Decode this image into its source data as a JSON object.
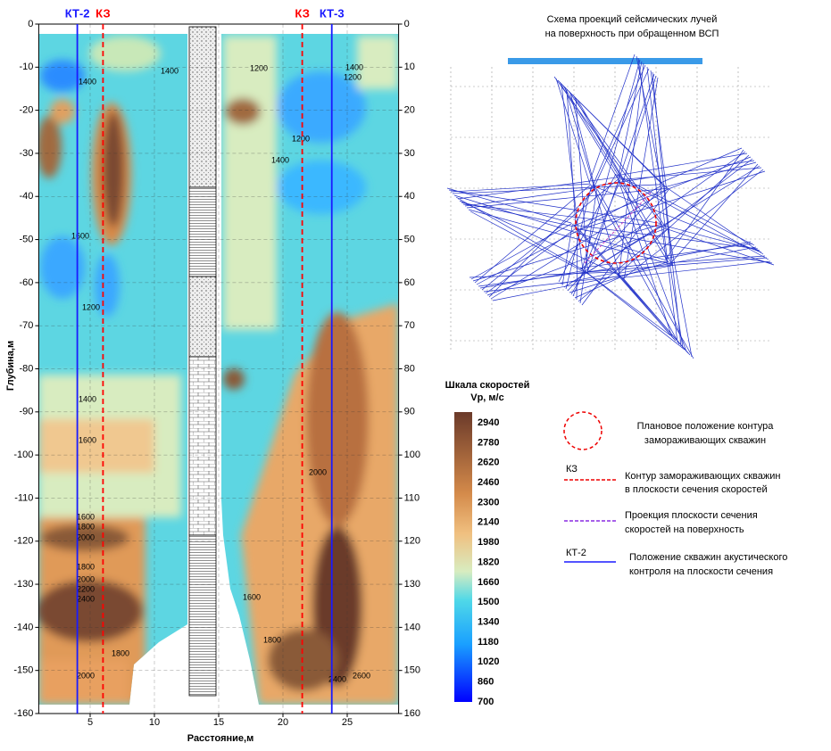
{
  "chart_data": {
    "type": "contour",
    "xlabel": "Расстояние,м",
    "ylabel": "Глубина,м",
    "xlim": [
      1,
      29
    ],
    "xticks": [
      5,
      10,
      15,
      20,
      25
    ],
    "ylim": [
      -160,
      0
    ],
    "yticks": [
      0,
      -10,
      -20,
      -30,
      -40,
      -50,
      -60,
      -70,
      -80,
      -90,
      -100,
      -110,
      -120,
      -130,
      -140,
      -150,
      -160
    ],
    "y2lim": [
      160,
      0
    ],
    "y2ticks": [
      0,
      10,
      20,
      30,
      40,
      50,
      60,
      70,
      80,
      90,
      100,
      110,
      120,
      130,
      140,
      150,
      160
    ],
    "grid": true,
    "annotations": [
      {
        "label": "КТ-2",
        "x": 4,
        "color": "#1a1aff"
      },
      {
        "label": "КЗ",
        "x": 6,
        "color": "#ff0000"
      },
      {
        "label": "КЗ",
        "x": 21.5,
        "color": "#ff0000"
      },
      {
        "label": "КТ-3",
        "x": 23.8,
        "color": "#1a1aff"
      }
    ],
    "colorbar": {
      "title": [
        "Шкала скоростей",
        "Vp, м/с"
      ],
      "lim": [
        700,
        2940
      ],
      "ticks": [
        2940,
        2780,
        2620,
        2460,
        2300,
        2140,
        1980,
        1820,
        1660,
        1500,
        1340,
        1180,
        1020,
        860,
        700
      ]
    },
    "contour_labels": [
      1400,
      1400,
      1200,
      1600,
      1400,
      1200,
      1200,
      1200,
      1400,
      1400,
      1600,
      1800,
      2000,
      1800,
      1600,
      2000,
      2200,
      2400,
      1800,
      2000,
      1600,
      1800,
      2000,
      2400,
      2600
    ]
  },
  "scheme": {
    "title": [
      "Схема проекций сейсмических лучей",
      "на поверхность при обращенном ВСП"
    ]
  },
  "legend": [
    {
      "lines": [
        "Плановое положение контура",
        "замораживающих скважин"
      ]
    },
    {
      "label": "КЗ",
      "lines": [
        "Контур замораживающих скважин",
        "в плоскости сечения скоростей"
      ]
    },
    {
      "lines": [
        "Проекция плоскости сечения",
        "скоростей  на поверхность"
      ]
    },
    {
      "label": "КТ-2",
      "lines": [
        "Положение скважин акустического",
        "контроля на плоскости сечения"
      ]
    }
  ]
}
